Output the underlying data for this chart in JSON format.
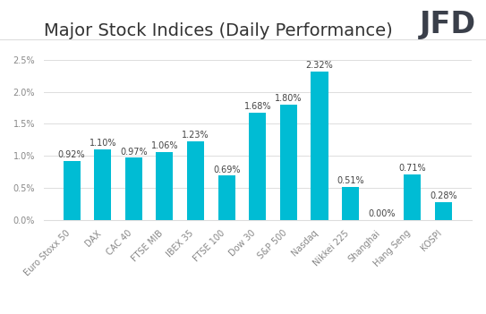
{
  "title": "Major Stock Indices (Daily Performance)",
  "categories": [
    "Euro Stoxx 50",
    "DAX",
    "CAC 40",
    "FTSE MIB",
    "IBEX 35",
    "FTSE 100",
    "Dow 30",
    "S&P 500",
    "Nasdaq",
    "Nikkei 225",
    "Shanghai",
    "Hang Seng",
    "KOSPI"
  ],
  "values": [
    0.92,
    1.1,
    0.97,
    1.06,
    1.23,
    0.69,
    1.68,
    1.8,
    2.32,
    0.51,
    0.0,
    0.71,
    0.28
  ],
  "labels": [
    "0.92%",
    "1.10%",
    "0.97%",
    "1.06%",
    "1.23%",
    "0.69%",
    "1.68%",
    "1.80%",
    "2.32%",
    "0.51%",
    "0.00%",
    "0.71%",
    "0.28%"
  ],
  "bar_color": "#00bcd4",
  "background_color": "#ffffff",
  "title_fontsize": 14,
  "label_fontsize": 7,
  "tick_fontsize": 7,
  "ylim": [
    0,
    2.7
  ],
  "yticks": [
    0.0,
    0.5,
    1.0,
    1.5,
    2.0,
    2.5
  ],
  "ytick_labels": [
    "0.0%",
    "0.5%",
    "1.0%",
    "1.5%",
    "2.0%",
    "2.5%"
  ],
  "logo_text": "JFD",
  "logo_fontsize": 24,
  "logo_color": "#3a3f4a",
  "grid_color": "#dddddd",
  "label_color": "#444444",
  "tick_color": "#888888"
}
